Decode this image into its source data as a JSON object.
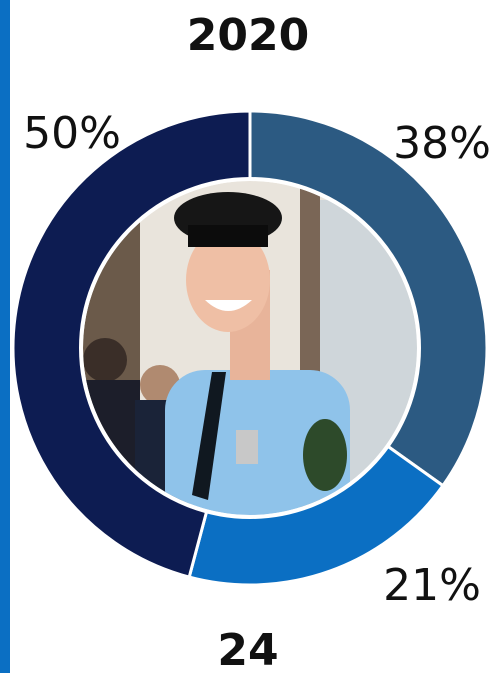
{
  "chart_data": {
    "type": "donut",
    "title": "2020",
    "subtitle": "24",
    "categories": [
      null,
      null,
      null
    ],
    "values": [
      38,
      21,
      50
    ],
    "value_labels": [
      "38%",
      "21%",
      "50%"
    ],
    "colors": [
      "#2c5a82",
      "#0b6fc3",
      "#0d1c52"
    ]
  }
}
